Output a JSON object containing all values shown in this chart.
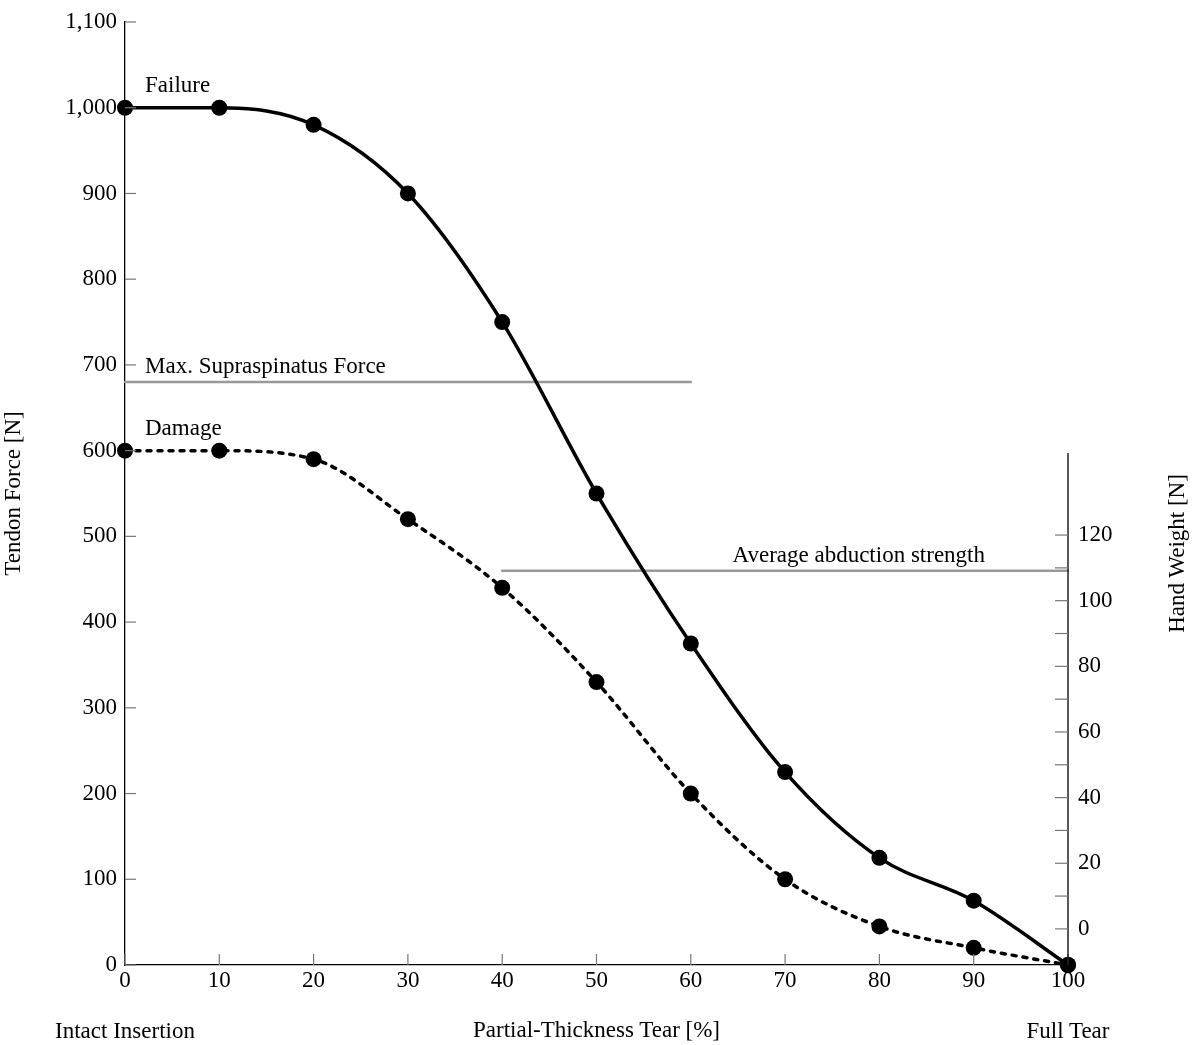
{
  "chart_data": {
    "type": "line",
    "xlabel": "Partial-Thickness Tear [%]",
    "ylabel": "Tendon Force [N]",
    "y2label": "Hand Weight [N]",
    "x": [
      0,
      10,
      20,
      30,
      40,
      50,
      60,
      70,
      80,
      90,
      100
    ],
    "series": [
      {
        "name": "Failure",
        "color": "#000000",
        "line_style": "solid",
        "values": [
          1000,
          1000,
          980,
          900,
          750,
          550,
          375,
          225,
          125,
          75,
          0
        ]
      },
      {
        "name": "Damage",
        "color": "#000000",
        "line_style": "dotted",
        "values": [
          600,
          600,
          590,
          520,
          440,
          330,
          200,
          100,
          45,
          20,
          0
        ]
      },
      {
        "name": "Max. Supraspinatus Force",
        "color": "#999999",
        "line_style": "solid",
        "marker": "none",
        "x": [
          0,
          60
        ],
        "values": [
          680,
          680
        ]
      },
      {
        "name": "Average abduction strength",
        "color": "#999999",
        "line_style": "solid",
        "marker": "none",
        "x": [
          40,
          100
        ],
        "values": [
          460,
          460
        ]
      }
    ],
    "annotations": [
      "Intact Insertion",
      "Full Tear"
    ],
    "xlim": [
      0,
      100
    ],
    "xticks": [
      0,
      10,
      20,
      30,
      40,
      50,
      60,
      70,
      80,
      90,
      100
    ],
    "ylim": [
      0,
      1100
    ],
    "yticks": [
      0,
      100,
      200,
      300,
      400,
      500,
      600,
      700,
      800,
      900,
      {
        "value": 1000,
        "label": "1,000"
      },
      {
        "value": 1100,
        "label": "1,100"
      }
    ],
    "y2lim": [
      -11,
      145
    ],
    "y2ticks": [
      0,
      {
        "value": 10,
        "label": null
      },
      20,
      {
        "value": 30,
        "label": null
      },
      40,
      {
        "value": 50,
        "label": null
      },
      60,
      {
        "value": 70,
        "label": null
      },
      80,
      {
        "value": 90,
        "label": null
      },
      100,
      {
        "value": 110,
        "label": null
      },
      120
    ],
    "grid": false,
    "legend": false,
    "marker": "circle"
  }
}
